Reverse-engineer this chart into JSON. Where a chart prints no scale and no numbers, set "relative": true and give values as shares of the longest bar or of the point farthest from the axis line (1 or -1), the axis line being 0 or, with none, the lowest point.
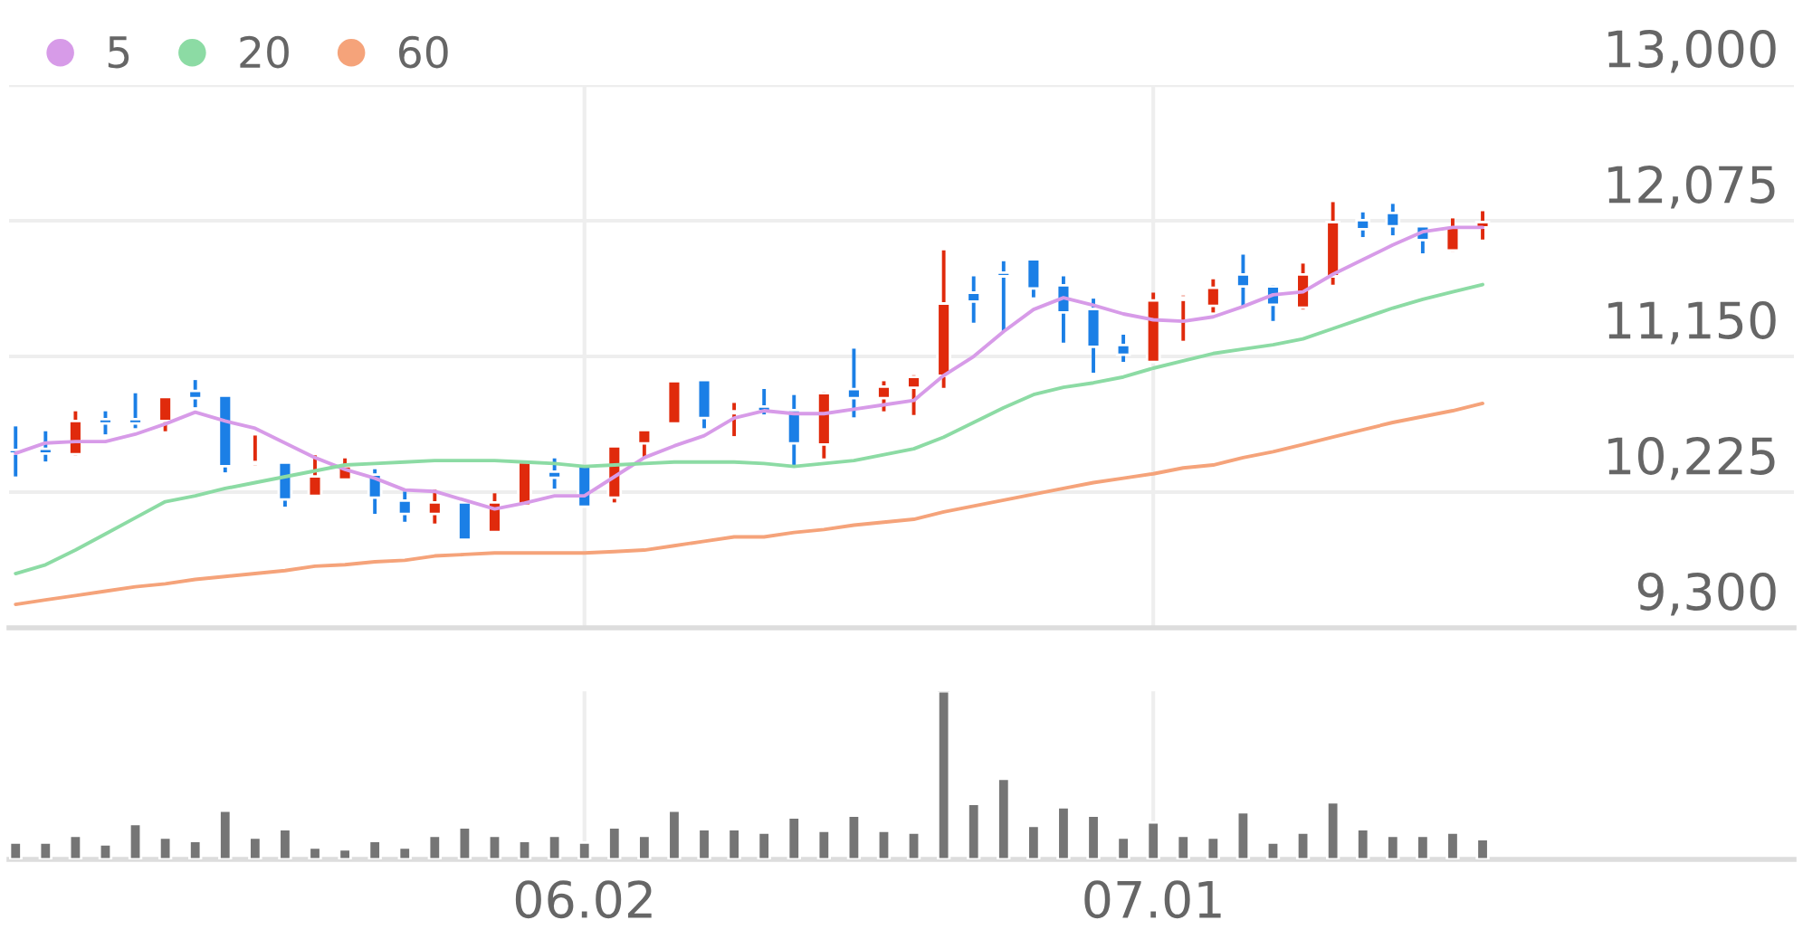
{
  "chart_data": [
    {
      "type": "candlestick",
      "categories": [
        null,
        null,
        null,
        null,
        null,
        null,
        null,
        null,
        null,
        null,
        null,
        null,
        null,
        null,
        null,
        null,
        null,
        null,
        null,
        "06.02",
        null,
        null,
        null,
        null,
        null,
        null,
        null,
        null,
        null,
        null,
        null,
        null,
        null,
        null,
        null,
        null,
        null,
        null,
        "07.01",
        null,
        null,
        null,
        null,
        null,
        null,
        null,
        null,
        null,
        null,
        null
      ],
      "ohlc": [
        [
          10513,
          10673,
          10332,
          10488
        ],
        [
          10521,
          10640,
          10434,
          10488
        ],
        [
          10484,
          10776,
          10476,
          10710
        ],
        [
          10722,
          10776,
          10619,
          10693
        ],
        [
          10722,
          10899,
          10661,
          10693
        ],
        [
          10710,
          10874,
          10640,
          10874
        ],
        [
          10915,
          10989,
          10804,
          10866
        ],
        [
          10883,
          10883,
          10360,
          10402
        ],
        [
          10414,
          10611,
          10406,
          10430
        ],
        [
          10426,
          10426,
          10126,
          10175
        ],
        [
          10200,
          10476,
          10200,
          10332
        ],
        [
          10311,
          10455,
          10311,
          10402
        ],
        [
          10344,
          10381,
          10077,
          10188
        ],
        [
          10167,
          10229,
          10023,
          10077
        ],
        [
          10077,
          10241,
          10011,
          10155
        ],
        [
          10155,
          10155,
          9900,
          9900
        ],
        [
          9953,
          10217,
          9949,
          10155
        ],
        [
          10134,
          10430,
          10134,
          10430
        ],
        [
          10364,
          10455,
          10249,
          10323
        ],
        [
          10402,
          10402,
          10126,
          10126
        ],
        [
          10188,
          10537,
          10155,
          10537
        ],
        [
          10558,
          10648,
          10455,
          10648
        ],
        [
          10693,
          10981,
          10693,
          10981
        ],
        [
          10989,
          10989,
          10661,
          10730
        ],
        [
          10763,
          10833,
          10607,
          10776
        ],
        [
          10808,
          10928,
          10755,
          10776
        ],
        [
          10784,
          10887,
          10402,
          10558
        ],
        [
          10550,
          10907,
          10455,
          10899
        ],
        [
          10928,
          11203,
          10735,
          10866
        ],
        [
          10866,
          10981,
          10776,
          10944
        ],
        [
          10936,
          11022,
          10751,
          11010
        ],
        [
          11018,
          11873,
          10936,
          11511
        ],
        [
          11585,
          11696,
          11380,
          11524
        ],
        [
          11721,
          11799,
          11318,
          11696
        ],
        [
          11812,
          11812,
          11553,
          11614
        ],
        [
          11635,
          11696,
          11244,
          11450
        ],
        [
          11474,
          11544,
          11039,
          11215
        ],
        [
          11228,
          11298,
          11113,
          11162
        ],
        [
          11113,
          11585,
          11113,
          11532
        ],
        [
          11536,
          11565,
          11257,
          11553
        ],
        [
          11495,
          11676,
          11450,
          11618
        ],
        [
          11709,
          11844,
          11483,
          11627
        ],
        [
          11627,
          11635,
          11392,
          11503
        ],
        [
          11483,
          11783,
          11470,
          11709
        ],
        [
          11696,
          12202,
          11639,
          12066
        ],
        [
          12079,
          12132,
          11964,
          12017
        ],
        [
          12128,
          12190,
          11976,
          12038
        ],
        [
          12038,
          12038,
          11853,
          11943
        ],
        [
          11873,
          12091,
          11865,
          12029
        ],
        [
          12029,
          12140,
          11947,
          12066
        ]
      ],
      "colors": [
        "#1b7fe6",
        "#1b7fe6",
        "#e02a0c",
        "#1b7fe6",
        "#1b7fe6",
        "#e02a0c",
        "#1b7fe6",
        "#1b7fe6",
        "#e02a0c",
        "#1b7fe6",
        "#e02a0c",
        "#e02a0c",
        "#1b7fe6",
        "#1b7fe6",
        "#e02a0c",
        "#1b7fe6",
        "#e02a0c",
        "#e02a0c",
        "#1b7fe6",
        "#1b7fe6",
        "#e02a0c",
        "#e02a0c",
        "#e02a0c",
        "#1b7fe6",
        "#e02a0c",
        "#1b7fe6",
        "#1b7fe6",
        "#e02a0c",
        "#1b7fe6",
        "#e02a0c",
        "#e02a0c",
        "#e02a0c",
        "#1b7fe6",
        "#1b7fe6",
        "#1b7fe6",
        "#1b7fe6",
        "#1b7fe6",
        "#1b7fe6",
        "#e02a0c",
        "#e02a0c",
        "#e02a0c",
        "#1b7fe6",
        "#1b7fe6",
        "#e02a0c",
        "#e02a0c",
        "#1b7fe6",
        "#1b7fe6",
        "#1b7fe6",
        "#e02a0c",
        "#e02a0c"
      ],
      "series": [
        {
          "type": "line",
          "name": "5",
          "color": "#d79be8",
          "values": [
            10490,
            10560,
            10570,
            10570,
            10620,
            10690,
            10770,
            10710,
            10660,
            10560,
            10460,
            10380,
            10320,
            10240,
            10230,
            10170,
            10110,
            10150,
            10200,
            10200,
            10330,
            10460,
            10540,
            10610,
            10730,
            10780,
            10760,
            10760,
            10790,
            10820,
            10850,
            11020,
            11150,
            11320,
            11470,
            11550,
            11500,
            11440,
            11400,
            11390,
            11420,
            11490,
            11570,
            11590,
            11710,
            11810,
            11910,
            12000,
            12030,
            12030
          ]
        },
        {
          "type": "line",
          "name": "20",
          "color": "#8cdba4",
          "values": [
            9670,
            9730,
            9830,
            9940,
            10050,
            10160,
            10200,
            10250,
            10290,
            10330,
            10370,
            10410,
            10420,
            10430,
            10440,
            10440,
            10440,
            10430,
            10420,
            10400,
            10410,
            10420,
            10430,
            10430,
            10430,
            10420,
            10400,
            10420,
            10440,
            10480,
            10520,
            10600,
            10700,
            10800,
            10890,
            10940,
            10970,
            11010,
            11070,
            11120,
            11170,
            11200,
            11230,
            11270,
            11340,
            11410,
            11480,
            11540,
            11590,
            11640
          ]
        },
        {
          "type": "line",
          "name": "60",
          "color": "#f5a37a",
          "values": [
            9460,
            9490,
            9520,
            9550,
            9580,
            9600,
            9630,
            9650,
            9670,
            9690,
            9720,
            9730,
            9750,
            9760,
            9790,
            9800,
            9810,
            9810,
            9810,
            9810,
            9820,
            9830,
            9860,
            9890,
            9920,
            9920,
            9950,
            9970,
            10000,
            10020,
            10040,
            10090,
            10130,
            10170,
            10210,
            10250,
            10290,
            10320,
            10350,
            10390,
            10410,
            10460,
            10500,
            10550,
            10600,
            10650,
            10700,
            10740,
            10780,
            10830
          ]
        }
      ],
      "ylim": [
        9300,
        13000
      ],
      "yticks": [
        {
          "value": 9300,
          "label": "9,300"
        },
        {
          "value": 10225,
          "label": "10,225"
        },
        {
          "value": 11150,
          "label": "11,150"
        },
        {
          "value": 12075,
          "label": "12,075"
        },
        {
          "value": 13000,
          "label": "13,000"
        }
      ],
      "grid": true,
      "legend": "top left",
      "tick_labels": "y"
    },
    {
      "type": "bar",
      "categories": [
        null,
        null,
        null,
        null,
        null,
        null,
        null,
        null,
        null,
        null,
        null,
        null,
        null,
        null,
        null,
        null,
        null,
        null,
        null,
        "06.02",
        null,
        null,
        null,
        null,
        null,
        null,
        null,
        null,
        null,
        null,
        null,
        null,
        null,
        null,
        null,
        null,
        null,
        null,
        "07.01",
        null,
        null,
        null,
        null,
        null,
        null,
        null,
        null,
        null,
        null,
        null
      ],
      "values": [
        0.1,
        0.1,
        0.14,
        0.09,
        0.21,
        0.13,
        0.11,
        0.29,
        0.13,
        0.18,
        0.07,
        0.06,
        0.11,
        0.07,
        0.14,
        0.19,
        0.14,
        0.11,
        0.14,
        0.1,
        0.19,
        0.14,
        0.29,
        0.18,
        0.18,
        0.16,
        0.25,
        0.17,
        0.26,
        0.17,
        0.16,
        1,
        0.33,
        0.48,
        0.2,
        0.31,
        0.26,
        0.13,
        0.22,
        0.14,
        0.13,
        0.28,
        0.1,
        0.16,
        0.34,
        0.18,
        0.14,
        0.14,
        0.16,
        0.12
      ],
      "color": "#757575",
      "relative": true,
      "grid": "x",
      "tick_labels": "x"
    }
  ]
}
